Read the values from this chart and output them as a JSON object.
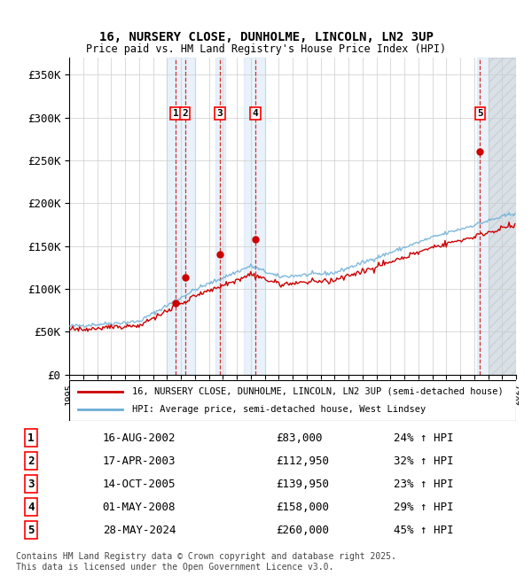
{
  "title": "16, NURSERY CLOSE, DUNHOLME, LINCOLN, LN2 3UP",
  "subtitle": "Price paid vs. HM Land Registry's House Price Index (HPI)",
  "xlim": [
    1995,
    2027
  ],
  "ylim": [
    0,
    370000
  ],
  "yticks": [
    0,
    50000,
    100000,
    150000,
    200000,
    250000,
    300000,
    350000
  ],
  "ytick_labels": [
    "£0",
    "£50K",
    "£100K",
    "£150K",
    "£200K",
    "£250K",
    "£300K",
    "£350K"
  ],
  "sale_dates_decimal": [
    2002.62,
    2003.29,
    2005.79,
    2008.33,
    2024.41
  ],
  "sale_prices": [
    83000,
    112950,
    139950,
    158000,
    260000
  ],
  "sale_labels": [
    "1",
    "2",
    "3",
    "4",
    "5"
  ],
  "vertical_shades": [
    {
      "x_start": 2002.0,
      "x_end": 2004.0
    },
    {
      "x_start": 2005.5,
      "x_end": 2006.2
    },
    {
      "x_start": 2007.5,
      "x_end": 2009.0
    },
    {
      "x_start": 2024.2,
      "x_end": 2027.0
    }
  ],
  "hpi_line_color": "#6baed6",
  "price_line_color": "#cc0000",
  "dashed_vline_color": "#cc0000",
  "grid_color": "#cccccc",
  "background_color": "#ffffff",
  "legend_entries": [
    "16, NURSERY CLOSE, DUNHOLME, LINCOLN, LN2 3UP (semi-detached house)",
    "HPI: Average price, semi-detached house, West Lindsey"
  ],
  "table_data": [
    [
      "1",
      "16-AUG-2002",
      "£83,000",
      "24% ↑ HPI"
    ],
    [
      "2",
      "17-APR-2003",
      "£112,950",
      "32% ↑ HPI"
    ],
    [
      "3",
      "14-OCT-2005",
      "£139,950",
      "23% ↑ HPI"
    ],
    [
      "4",
      "01-MAY-2008",
      "£158,000",
      "29% ↑ HPI"
    ],
    [
      "5",
      "28-MAY-2024",
      "£260,000",
      "45% ↑ HPI"
    ]
  ],
  "footnote": "Contains HM Land Registry data © Crown copyright and database right 2025.\nThis data is licensed under the Open Government Licence v3.0."
}
